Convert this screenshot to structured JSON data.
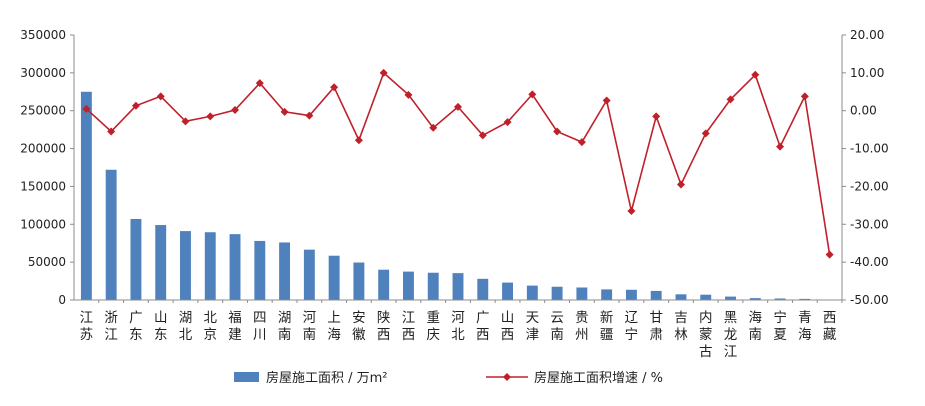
{
  "chart_data": {
    "type": "bar",
    "categories": [
      "江苏",
      "浙江",
      "广东",
      "山东",
      "湖北",
      "北京",
      "福建",
      "四川",
      "湖南",
      "河南",
      "上海",
      "安徽",
      "陕西",
      "江西",
      "重庆",
      "河北",
      "广西",
      "山西",
      "天津",
      "云南",
      "贵州",
      "新疆",
      "辽宁",
      "甘肃",
      "吉林",
      "内蒙古",
      "黑龙江",
      "海南",
      "宁夏",
      "青海",
      "西藏"
    ],
    "category_lines": [
      [
        "江",
        "苏"
      ],
      [
        "浙",
        "江"
      ],
      [
        "广",
        "东"
      ],
      [
        "山",
        "东"
      ],
      [
        "湖",
        "北"
      ],
      [
        "北",
        "京"
      ],
      [
        "福",
        "建"
      ],
      [
        "四",
        "川"
      ],
      [
        "湖",
        "南"
      ],
      [
        "河",
        "南"
      ],
      [
        "上",
        "海"
      ],
      [
        "安",
        "徽"
      ],
      [
        "陕",
        "西"
      ],
      [
        "江",
        "西"
      ],
      [
        "重",
        "庆"
      ],
      [
        "河",
        "北"
      ],
      [
        "广",
        "西"
      ],
      [
        "山",
        "西"
      ],
      [
        "天",
        "津"
      ],
      [
        "云",
        "南"
      ],
      [
        "贵",
        "州"
      ],
      [
        "新",
        "疆"
      ],
      [
        "辽",
        "宁"
      ],
      [
        "甘",
        "肃"
      ],
      [
        "吉",
        "林"
      ],
      [
        "内",
        "蒙",
        "古"
      ],
      [
        "黑",
        "龙",
        "江"
      ],
      [
        "海",
        "南"
      ],
      [
        "宁",
        "夏"
      ],
      [
        "青",
        "海"
      ],
      [
        "西",
        "藏"
      ]
    ],
    "series": [
      {
        "name": "房屋施工面积 / 万m²",
        "type": "bar",
        "axis": "left",
        "color": "#4f81bd",
        "values": [
          275000,
          172000,
          107000,
          99000,
          91000,
          89500,
          87000,
          78000,
          76000,
          66500,
          58500,
          49500,
          40000,
          37500,
          36000,
          35500,
          28000,
          23000,
          19000,
          17500,
          16500,
          14000,
          13500,
          12000,
          7500,
          7000,
          4500,
          2500,
          2000,
          1500,
          600
        ]
      },
      {
        "name": "房屋施工面积增速 / %",
        "type": "line",
        "axis": "right",
        "color": "#c0202a",
        "values": [
          0.5,
          -5.5,
          1.3,
          3.8,
          -2.8,
          -1.5,
          0.2,
          7.3,
          -0.3,
          -1.3,
          6.2,
          -7.8,
          10.0,
          4.2,
          -4.5,
          1.0,
          -6.5,
          -3.0,
          4.3,
          -5.5,
          -8.3,
          2.7,
          -26.5,
          -1.5,
          -19.5,
          -6.0,
          3.0,
          9.5,
          -9.5,
          3.8,
          -38.0
        ]
      }
    ],
    "y_left": {
      "min": 0,
      "max": 350000,
      "ticks": [
        "0",
        "50000",
        "100000",
        "150000",
        "200000",
        "250000",
        "300000",
        "350000"
      ]
    },
    "y_right": {
      "min": -50,
      "max": 20,
      "ticks": [
        "-50.00",
        "-40.00",
        "-30.00",
        "-20.00",
        "-10.00",
        "0.00",
        "10.00",
        "20.00"
      ]
    },
    "legend_position": "bottom",
    "grid": false
  }
}
